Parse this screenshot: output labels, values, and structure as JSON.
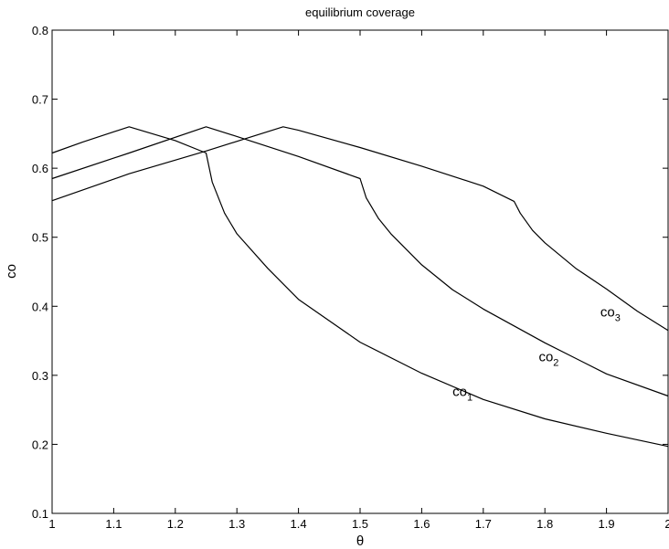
{
  "chart_data": {
    "type": "line",
    "title": "equilibrium coverage",
    "xlabel": "θ",
    "ylabel": "co",
    "xlim": [
      1,
      2
    ],
    "ylim": [
      0.1,
      0.8
    ],
    "x_ticks": [
      1,
      1.1,
      1.2,
      1.3,
      1.4,
      1.5,
      1.6,
      1.7,
      1.8,
      1.9,
      2
    ],
    "x_tick_labels": [
      "1",
      "1.1",
      "1.2",
      "1.3",
      "1.4",
      "1.5",
      "1.6",
      "1.7",
      "1.8",
      "1.9",
      "2"
    ],
    "y_ticks": [
      0.1,
      0.2,
      0.3,
      0.4,
      0.5,
      0.6,
      0.7,
      0.8
    ],
    "y_tick_labels": [
      "0.1",
      "0.2",
      "0.3",
      "0.4",
      "0.5",
      "0.6",
      "0.7",
      "0.8"
    ],
    "grid": false,
    "line_color": "#000000",
    "series": [
      {
        "label_main": "co",
        "label_sub": "1",
        "label_at": [
          1.65,
          0.27
        ],
        "x": [
          1.0,
          1.05,
          1.125,
          1.2,
          1.25,
          1.26,
          1.28,
          1.3,
          1.35,
          1.4,
          1.5,
          1.6,
          1.7,
          1.8,
          1.9,
          2.0
        ],
        "y": [
          0.622,
          0.638,
          0.66,
          0.64,
          0.622,
          0.58,
          0.535,
          0.505,
          0.455,
          0.41,
          0.348,
          0.303,
          0.265,
          0.237,
          0.216,
          0.197
        ]
      },
      {
        "label_main": "co",
        "label_sub": "2",
        "label_at": [
          1.79,
          0.32
        ],
        "x": [
          1.0,
          1.125,
          1.25,
          1.3,
          1.4,
          1.5,
          1.51,
          1.53,
          1.55,
          1.6,
          1.65,
          1.7,
          1.8,
          1.9,
          2.0
        ],
        "y": [
          0.585,
          0.622,
          0.66,
          0.646,
          0.617,
          0.585,
          0.557,
          0.527,
          0.505,
          0.46,
          0.424,
          0.396,
          0.347,
          0.302,
          0.27
        ]
      },
      {
        "label_main": "co",
        "label_sub": "3",
        "label_at": [
          1.89,
          0.385
        ],
        "x": [
          1.0,
          1.125,
          1.25,
          1.375,
          1.4,
          1.5,
          1.6,
          1.7,
          1.75,
          1.76,
          1.78,
          1.8,
          1.85,
          1.9,
          1.95,
          2.0
        ],
        "y": [
          0.553,
          0.592,
          0.625,
          0.66,
          0.655,
          0.63,
          0.603,
          0.574,
          0.552,
          0.535,
          0.51,
          0.492,
          0.455,
          0.425,
          0.393,
          0.365
        ]
      }
    ]
  }
}
